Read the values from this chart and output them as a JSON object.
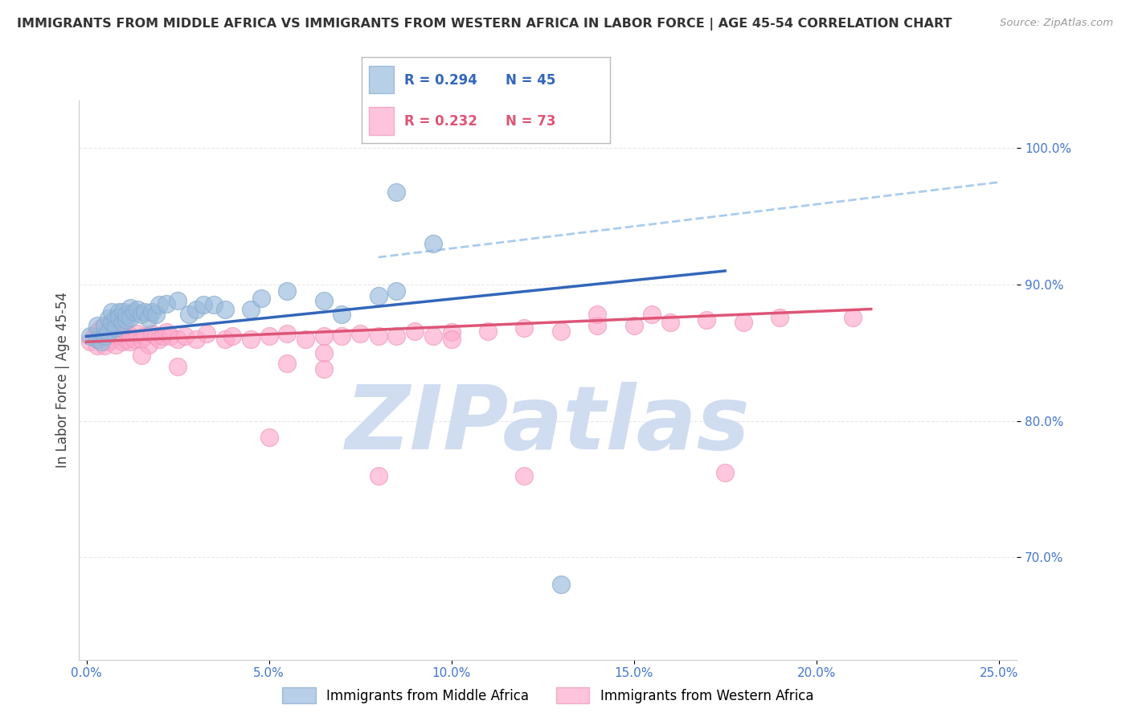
{
  "title": "IMMIGRANTS FROM MIDDLE AFRICA VS IMMIGRANTS FROM WESTERN AFRICA IN LABOR FORCE | AGE 45-54 CORRELATION CHART",
  "source": "Source: ZipAtlas.com",
  "ylabel": "In Labor Force | Age 45-54",
  "legend_blue_label": "Immigrants from Middle Africa",
  "legend_pink_label": "Immigrants from Western Africa",
  "legend_blue_r": "R = 0.294",
  "legend_blue_n": "N = 45",
  "legend_pink_r": "R = 0.232",
  "legend_pink_n": "N = 73",
  "xlim": [
    -0.002,
    0.255
  ],
  "ylim": [
    0.625,
    1.035
  ],
  "xticks": [
    0.0,
    0.05,
    0.1,
    0.15,
    0.2,
    0.25
  ],
  "yticks": [
    0.7,
    0.8,
    0.9,
    1.0
  ],
  "ytick_labels_right": [
    "70.0%",
    "80.0%",
    "90.0%",
    "100.0%"
  ],
  "xtick_labels": [
    "0.0%",
    "5.0%",
    "10.0%",
    "15.0%",
    "20.0%",
    "25.0%"
  ],
  "blue_color": "#99BBDD",
  "pink_color": "#FFAACC",
  "blue_edge_color": "#88AACC",
  "pink_edge_color": "#EE99BB",
  "blue_line_color": "#3366BB",
  "pink_line_color": "#DD5577",
  "dashed_line_color": "#AACCEE",
  "grid_color": "#E8E8E8",
  "background_color": "#FFFFFF",
  "watermark_color": "#D0DCF0",
  "tick_color": "#4477CC",
  "blue_scatter_x": [
    0.001,
    0.003,
    0.003,
    0.004,
    0.005,
    0.005,
    0.006,
    0.006,
    0.007,
    0.007,
    0.008,
    0.008,
    0.009,
    0.009,
    0.01,
    0.01,
    0.011,
    0.011,
    0.012,
    0.012,
    0.013,
    0.014,
    0.015,
    0.016,
    0.017,
    0.018,
    0.019,
    0.02,
    0.022,
    0.025,
    0.028,
    0.03,
    0.032,
    0.035,
    0.038,
    0.045,
    0.048,
    0.055,
    0.065,
    0.07,
    0.08,
    0.085,
    0.095,
    0.13,
    0.085
  ],
  "blue_scatter_y": [
    0.862,
    0.86,
    0.87,
    0.858,
    0.862,
    0.87,
    0.875,
    0.865,
    0.872,
    0.88,
    0.875,
    0.868,
    0.88,
    0.876,
    0.88,
    0.872,
    0.874,
    0.878,
    0.883,
    0.876,
    0.88,
    0.882,
    0.878,
    0.88,
    0.875,
    0.88,
    0.878,
    0.885,
    0.886,
    0.888,
    0.878,
    0.882,
    0.885,
    0.885,
    0.882,
    0.882,
    0.89,
    0.895,
    0.888,
    0.878,
    0.892,
    0.895,
    0.93,
    0.68,
    0.968
  ],
  "pink_scatter_x": [
    0.001,
    0.002,
    0.003,
    0.003,
    0.004,
    0.004,
    0.005,
    0.005,
    0.006,
    0.006,
    0.007,
    0.007,
    0.008,
    0.008,
    0.009,
    0.009,
    0.01,
    0.01,
    0.011,
    0.011,
    0.012,
    0.012,
    0.013,
    0.014,
    0.015,
    0.016,
    0.017,
    0.018,
    0.019,
    0.02,
    0.021,
    0.022,
    0.023,
    0.025,
    0.027,
    0.03,
    0.033,
    0.038,
    0.04,
    0.045,
    0.05,
    0.055,
    0.06,
    0.065,
    0.07,
    0.075,
    0.08,
    0.085,
    0.09,
    0.095,
    0.1,
    0.11,
    0.12,
    0.13,
    0.14,
    0.15,
    0.16,
    0.17,
    0.18,
    0.19,
    0.015,
    0.025,
    0.05,
    0.055,
    0.065,
    0.1,
    0.14,
    0.155,
    0.21,
    0.065,
    0.08,
    0.12,
    0.175
  ],
  "pink_scatter_y": [
    0.858,
    0.862,
    0.855,
    0.865,
    0.86,
    0.868,
    0.855,
    0.862,
    0.858,
    0.864,
    0.86,
    0.866,
    0.862,
    0.856,
    0.862,
    0.868,
    0.858,
    0.864,
    0.86,
    0.866,
    0.862,
    0.858,
    0.86,
    0.864,
    0.86,
    0.862,
    0.856,
    0.864,
    0.862,
    0.86,
    0.862,
    0.865,
    0.862,
    0.86,
    0.862,
    0.86,
    0.864,
    0.86,
    0.862,
    0.86,
    0.862,
    0.864,
    0.86,
    0.862,
    0.862,
    0.864,
    0.862,
    0.862,
    0.866,
    0.862,
    0.865,
    0.866,
    0.868,
    0.866,
    0.87,
    0.87,
    0.872,
    0.874,
    0.872,
    0.876,
    0.848,
    0.84,
    0.788,
    0.842,
    0.85,
    0.86,
    0.878,
    0.878,
    0.876,
    0.838,
    0.76,
    0.76,
    0.762
  ],
  "blue_trend_x": [
    0.0,
    0.175
  ],
  "blue_trend_y": [
    0.862,
    0.91
  ],
  "pink_trend_x": [
    0.0,
    0.215
  ],
  "pink_trend_y": [
    0.858,
    0.882
  ],
  "dashed_trend_x": [
    0.08,
    0.25
  ],
  "dashed_trend_y": [
    0.92,
    0.975
  ]
}
